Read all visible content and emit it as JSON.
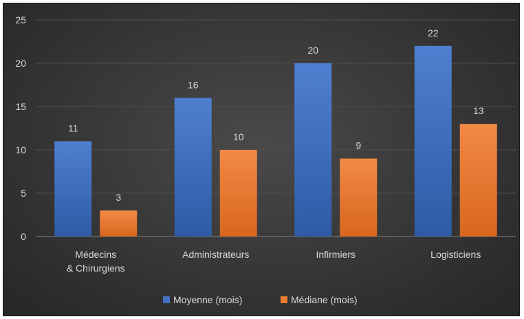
{
  "chart_data": {
    "type": "bar",
    "title": "",
    "xlabel": "",
    "ylabel": "",
    "categories": [
      "Médecins\n& Chirurgiens",
      "Administrateurs",
      "Infirmiers",
      "Logisticiens"
    ],
    "series": [
      {
        "name": "Moyenne (mois)",
        "values": [
          11,
          16,
          20,
          22
        ],
        "labels": [
          "11",
          "16",
          "20",
          "22"
        ],
        "color": "#4472c4"
      },
      {
        "name": "Médiane (mois)",
        "values": [
          3,
          10,
          9,
          13
        ],
        "labels": [
          "3",
          "10",
          "9",
          "13"
        ],
        "color": "#ed7d31"
      }
    ],
    "ylim": [
      0,
      25
    ],
    "yticks": [
      "0",
      "5",
      "10",
      "15",
      "20",
      "25"
    ],
    "grid": true,
    "legend_position": "bottom"
  }
}
